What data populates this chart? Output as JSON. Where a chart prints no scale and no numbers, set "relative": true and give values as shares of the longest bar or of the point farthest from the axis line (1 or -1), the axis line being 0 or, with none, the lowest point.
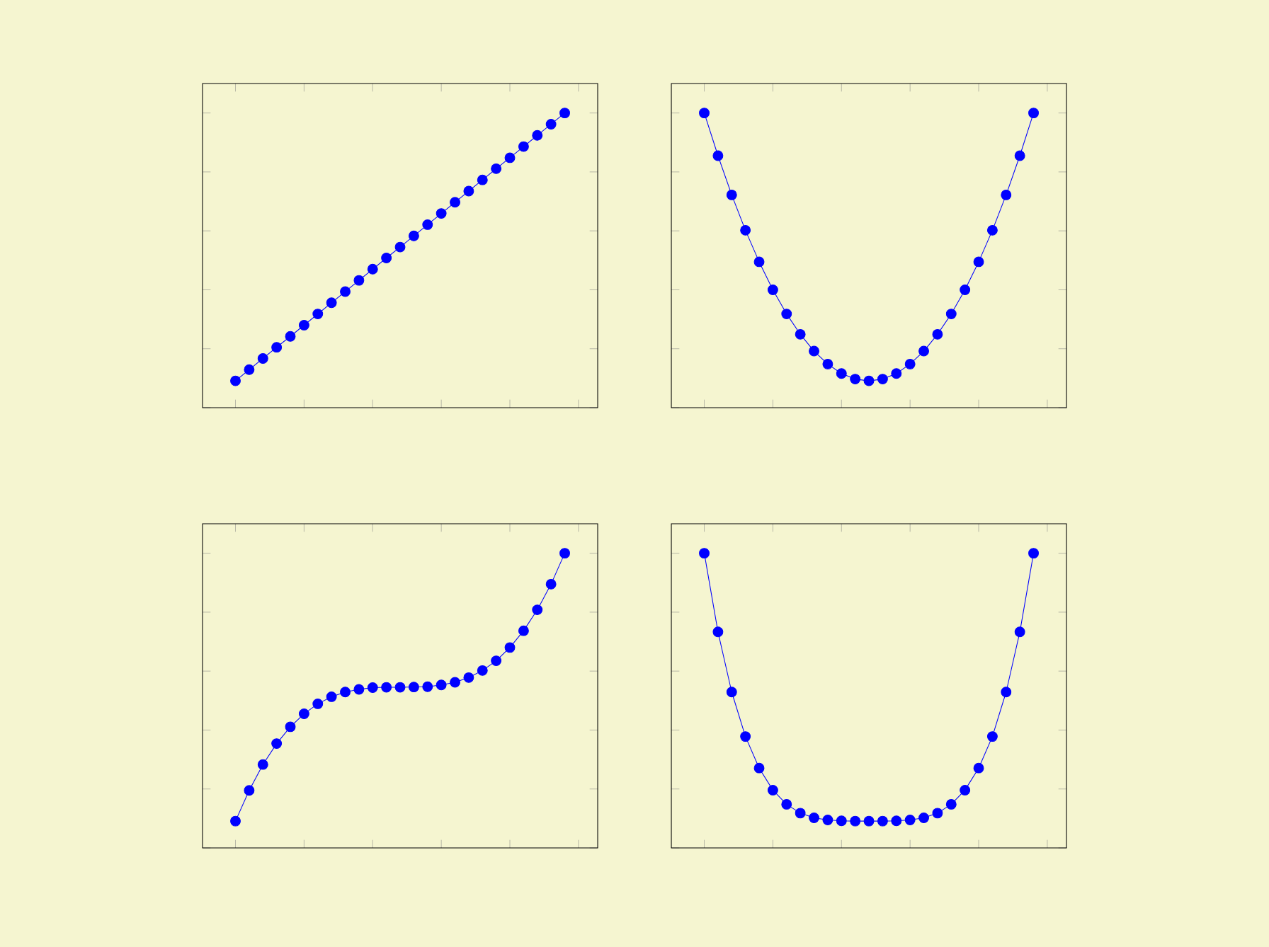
{
  "chart_data": [
    {
      "type": "line",
      "relative": true,
      "marker": "circle",
      "color": "#0000ff",
      "categories": [
        null,
        null,
        null,
        null,
        null,
        null,
        null,
        null,
        null,
        null,
        null,
        null,
        null,
        null,
        null,
        null,
        null,
        null,
        null,
        null,
        null,
        null,
        null,
        null,
        null
      ],
      "values": [
        0.091,
        0.129,
        0.167,
        0.205,
        0.242,
        0.28,
        0.318,
        0.356,
        0.394,
        0.432,
        0.47,
        0.508,
        0.545,
        0.583,
        0.621,
        0.659,
        0.697,
        0.735,
        0.773,
        0.811,
        0.848,
        0.886,
        0.924,
        0.962,
        1
      ]
    },
    {
      "type": "line",
      "relative": true,
      "marker": "circle",
      "color": "#0000ff",
      "categories": [
        null,
        null,
        null,
        null,
        null,
        null,
        null,
        null,
        null,
        null,
        null,
        null,
        null,
        null,
        null,
        null,
        null,
        null,
        null,
        null,
        null,
        null,
        null,
        null,
        null
      ],
      "values": [
        1,
        0.855,
        0.722,
        0.602,
        0.495,
        0.4,
        0.318,
        0.249,
        0.192,
        0.148,
        0.116,
        0.097,
        0.091,
        0.097,
        0.116,
        0.148,
        0.192,
        0.249,
        0.318,
        0.4,
        0.495,
        0.602,
        0.722,
        0.855,
        1
      ]
    },
    {
      "type": "line",
      "relative": true,
      "marker": "circle",
      "color": "#0000ff",
      "categories": [
        null,
        null,
        null,
        null,
        null,
        null,
        null,
        null,
        null,
        null,
        null,
        null,
        null,
        null,
        null,
        null,
        null,
        null,
        null,
        null,
        null,
        null,
        null,
        null,
        null
      ],
      "values": [
        0.091,
        0.195,
        0.283,
        0.354,
        0.411,
        0.455,
        0.489,
        0.513,
        0.529,
        0.538,
        0.544,
        0.545,
        0.545,
        0.546,
        0.547,
        0.553,
        0.562,
        0.578,
        0.602,
        0.635,
        0.68,
        0.737,
        0.808,
        0.895,
        1
      ]
    },
    {
      "type": "line",
      "relative": true,
      "marker": "circle",
      "color": "#0000ff",
      "categories": [
        null,
        null,
        null,
        null,
        null,
        null,
        null,
        null,
        null,
        null,
        null,
        null,
        null,
        null,
        null,
        null,
        null,
        null,
        null,
        null,
        null,
        null,
        null,
        null,
        null
      ],
      "values": [
        1,
        0.733,
        0.529,
        0.378,
        0.271,
        0.196,
        0.148,
        0.118,
        0.102,
        0.095,
        0.092,
        0.091,
        0.091,
        0.091,
        0.092,
        0.095,
        0.102,
        0.118,
        0.148,
        0.196,
        0.271,
        0.378,
        0.529,
        0.733,
        1
      ]
    }
  ]
}
